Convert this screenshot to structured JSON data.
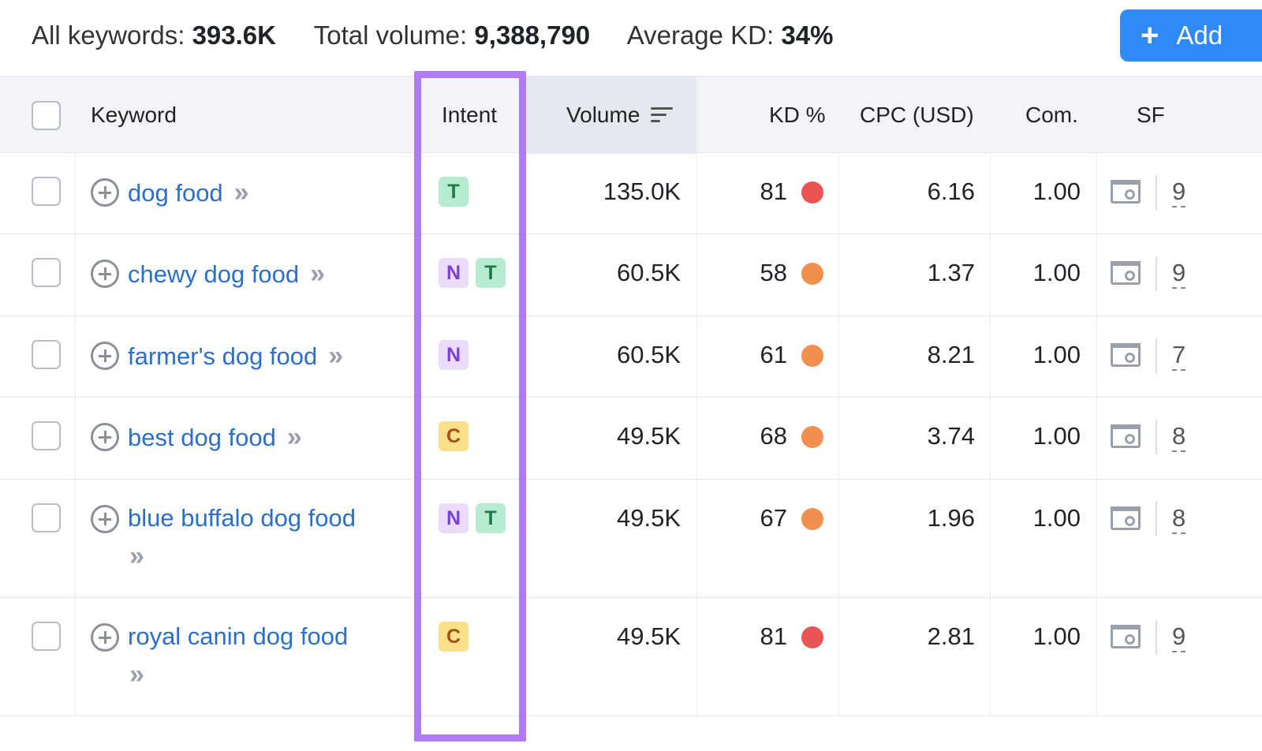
{
  "summary": {
    "all_keywords_label": "All keywords:",
    "all_keywords_value": "393.6K",
    "total_volume_label": "Total volume:",
    "total_volume_value": "9,388,790",
    "avg_kd_label": "Average KD:",
    "avg_kd_value": "34%",
    "add_button_label": "Add"
  },
  "table": {
    "headers": {
      "keyword": "Keyword",
      "intent": "Intent",
      "volume": "Volume",
      "kd": "KD %",
      "cpc": "CPC (USD)",
      "com": "Com.",
      "sf": "SF"
    },
    "rows": [
      {
        "keyword_line1": "dog food",
        "keyword_line2": "",
        "intents": [
          "T"
        ],
        "volume": "135.0K",
        "kd": "81",
        "kd_color": "#ea5455",
        "cpc": "6.16",
        "com": "1.00",
        "sf": "9"
      },
      {
        "keyword_line1": "chewy dog food",
        "keyword_line2": "",
        "intents": [
          "N",
          "T"
        ],
        "volume": "60.5K",
        "kd": "58",
        "kd_color": "#f0904c",
        "cpc": "1.37",
        "com": "1.00",
        "sf": "9"
      },
      {
        "keyword_line1": "farmer's dog food",
        "keyword_line2": "",
        "intents": [
          "N"
        ],
        "volume": "60.5K",
        "kd": "61",
        "kd_color": "#f0904c",
        "cpc": "8.21",
        "com": "1.00",
        "sf": "7"
      },
      {
        "keyword_line1": "best dog food",
        "keyword_line2": "",
        "intents": [
          "C"
        ],
        "volume": "49.5K",
        "kd": "68",
        "kd_color": "#f0904c",
        "cpc": "3.74",
        "com": "1.00",
        "sf": "8"
      },
      {
        "keyword_line1": "blue buffalo dog food",
        "keyword_line2": "»",
        "intents": [
          "N",
          "T"
        ],
        "volume": "49.5K",
        "kd": "67",
        "kd_color": "#f0904c",
        "cpc": "1.96",
        "com": "1.00",
        "sf": "8"
      },
      {
        "keyword_line1": "royal canin dog food",
        "keyword_line2": "»",
        "intents": [
          "C"
        ],
        "volume": "49.5K",
        "kd": "81",
        "kd_color": "#ea5455",
        "cpc": "2.81",
        "com": "1.00",
        "sf": "9"
      }
    ]
  },
  "intent_styles": {
    "T": {
      "bg": "#b7ecd0",
      "fg": "#1c7a4a"
    },
    "N": {
      "bg": "#eadcfa",
      "fg": "#7b3fd6"
    },
    "C": {
      "bg": "#fbe08a",
      "fg": "#a0521a"
    }
  },
  "icons": {
    "add": "plus-icon",
    "row_add": "plus-circle-icon",
    "chevrons": "double-chevron-icon",
    "sort": "sort-descending-icon",
    "sf": "serp-features-icon",
    "kd_dot": "difficulty-dot-icon"
  }
}
